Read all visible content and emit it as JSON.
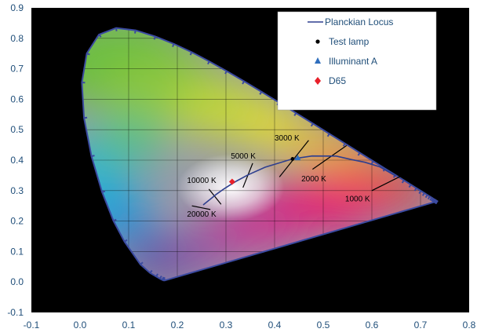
{
  "chart_data": {
    "type": "scatter",
    "xlim": [
      -0.1,
      0.8
    ],
    "ylim": [
      -0.1,
      0.9
    ],
    "x_ticks": [
      "-0.1",
      "0.0",
      "0.1",
      "0.2",
      "0.3",
      "0.4",
      "0.5",
      "0.6",
      "0.7",
      "0.8"
    ],
    "y_ticks": [
      "-0.1",
      "0.0",
      "0.1",
      "0.2",
      "0.3",
      "0.4",
      "0.5",
      "0.6",
      "0.7",
      "0.8",
      "0.9"
    ],
    "grid": true,
    "legend_position": "top-right",
    "colors": {
      "plot_background": "#000000",
      "grid": "#000000",
      "planckian": "#2e3f8f",
      "test_lamp": "#000000",
      "illuminant_a": "#2f6ebd",
      "d65": "#e8202a",
      "tick_label": "#1f4e79"
    },
    "spectral_locus": [
      [
        0.1741,
        0.005
      ],
      [
        0.1738,
        0.0049
      ],
      [
        0.1733,
        0.0048
      ],
      [
        0.1726,
        0.0048
      ],
      [
        0.1714,
        0.0051
      ],
      [
        0.1689,
        0.0069
      ],
      [
        0.1644,
        0.0109
      ],
      [
        0.1566,
        0.0177
      ],
      [
        0.144,
        0.0297
      ],
      [
        0.1241,
        0.0578
      ],
      [
        0.0913,
        0.1327
      ],
      [
        0.0687,
        0.2007
      ],
      [
        0.0454,
        0.295
      ],
      [
        0.0235,
        0.4127
      ],
      [
        0.0082,
        0.5384
      ],
      [
        0.0039,
        0.6548
      ],
      [
        0.0139,
        0.7502
      ],
      [
        0.0389,
        0.812
      ],
      [
        0.0743,
        0.8338
      ],
      [
        0.1142,
        0.8262
      ],
      [
        0.1547,
        0.8059
      ],
      [
        0.1929,
        0.7816
      ],
      [
        0.2296,
        0.7543
      ],
      [
        0.2658,
        0.7243
      ],
      [
        0.3016,
        0.6923
      ],
      [
        0.3373,
        0.6589
      ],
      [
        0.3731,
        0.6245
      ],
      [
        0.4087,
        0.5896
      ],
      [
        0.4441,
        0.5547
      ],
      [
        0.4788,
        0.5202
      ],
      [
        0.5125,
        0.4866
      ],
      [
        0.5448,
        0.4544
      ],
      [
        0.5752,
        0.4242
      ],
      [
        0.6029,
        0.3965
      ],
      [
        0.627,
        0.3725
      ],
      [
        0.6482,
        0.3514
      ],
      [
        0.6658,
        0.334
      ],
      [
        0.6801,
        0.3197
      ],
      [
        0.6915,
        0.3083
      ],
      [
        0.7006,
        0.2993
      ],
      [
        0.7079,
        0.292
      ],
      [
        0.714,
        0.2859
      ],
      [
        0.719,
        0.2809
      ],
      [
        0.723,
        0.277
      ],
      [
        0.726,
        0.274
      ],
      [
        0.7283,
        0.2717
      ],
      [
        0.73,
        0.27
      ],
      [
        0.7311,
        0.2689
      ],
      [
        0.732,
        0.268
      ],
      [
        0.7327,
        0.2673
      ],
      [
        0.7334,
        0.2666
      ],
      [
        0.734,
        0.266
      ],
      [
        0.7344,
        0.2656
      ],
      [
        0.7346,
        0.2654
      ],
      [
        0.7347,
        0.2653
      ]
    ],
    "planckian_locus": [
      [
        0.6499,
        0.3474
      ],
      [
        0.6163,
        0.378
      ],
      [
        0.5857,
        0.3931
      ],
      [
        0.5586,
        0.4018
      ],
      [
        0.5267,
        0.4133
      ],
      [
        0.477,
        0.4137
      ],
      [
        0.4369,
        0.4041
      ],
      [
        0.3805,
        0.3768
      ],
      [
        0.3451,
        0.3516
      ],
      [
        0.3221,
        0.3318
      ],
      [
        0.3064,
        0.3166
      ],
      [
        0.2952,
        0.3048
      ],
      [
        0.2807,
        0.2883
      ],
      [
        0.2637,
        0.2666
      ],
      [
        0.2532,
        0.253
      ]
    ],
    "series": [
      {
        "name": "Planckian Locus",
        "marker": "line"
      },
      {
        "name": "Test lamp",
        "marker": "dot",
        "x": [
          0.437
        ],
        "y": [
          0.404
        ]
      },
      {
        "name": "Illuminant A",
        "marker": "triangle",
        "x": [
          0.4476
        ],
        "y": [
          0.4074
        ]
      },
      {
        "name": "D65",
        "marker": "diamond",
        "x": [
          0.3127
        ],
        "y": [
          0.329
        ]
      }
    ],
    "isotemperature_lines": [
      {
        "label": "1000 K",
        "x1": 0.6,
        "y1": 0.3,
        "x2": 0.665,
        "y2": 0.352,
        "label_x": 0.545,
        "label_y": 0.265
      },
      {
        "label": "2000 K",
        "x1": 0.478,
        "y1": 0.37,
        "x2": 0.548,
        "y2": 0.448,
        "label_x": 0.455,
        "label_y": 0.33
      },
      {
        "label": "3000 K",
        "x1": 0.41,
        "y1": 0.345,
        "x2": 0.47,
        "y2": 0.465,
        "label_x": 0.4,
        "label_y": 0.465
      },
      {
        "label": "5000 K",
        "x1": 0.335,
        "y1": 0.31,
        "x2": 0.355,
        "y2": 0.39,
        "label_x": 0.31,
        "label_y": 0.405
      },
      {
        "label": "10000 K",
        "x1": 0.265,
        "y1": 0.305,
        "x2": 0.29,
        "y2": 0.255,
        "label_x": 0.22,
        "label_y": 0.325
      },
      {
        "label": "20000 K",
        "x1": 0.23,
        "y1": 0.25,
        "x2": 0.268,
        "y2": 0.238,
        "label_x": 0.22,
        "label_y": 0.215
      }
    ]
  }
}
